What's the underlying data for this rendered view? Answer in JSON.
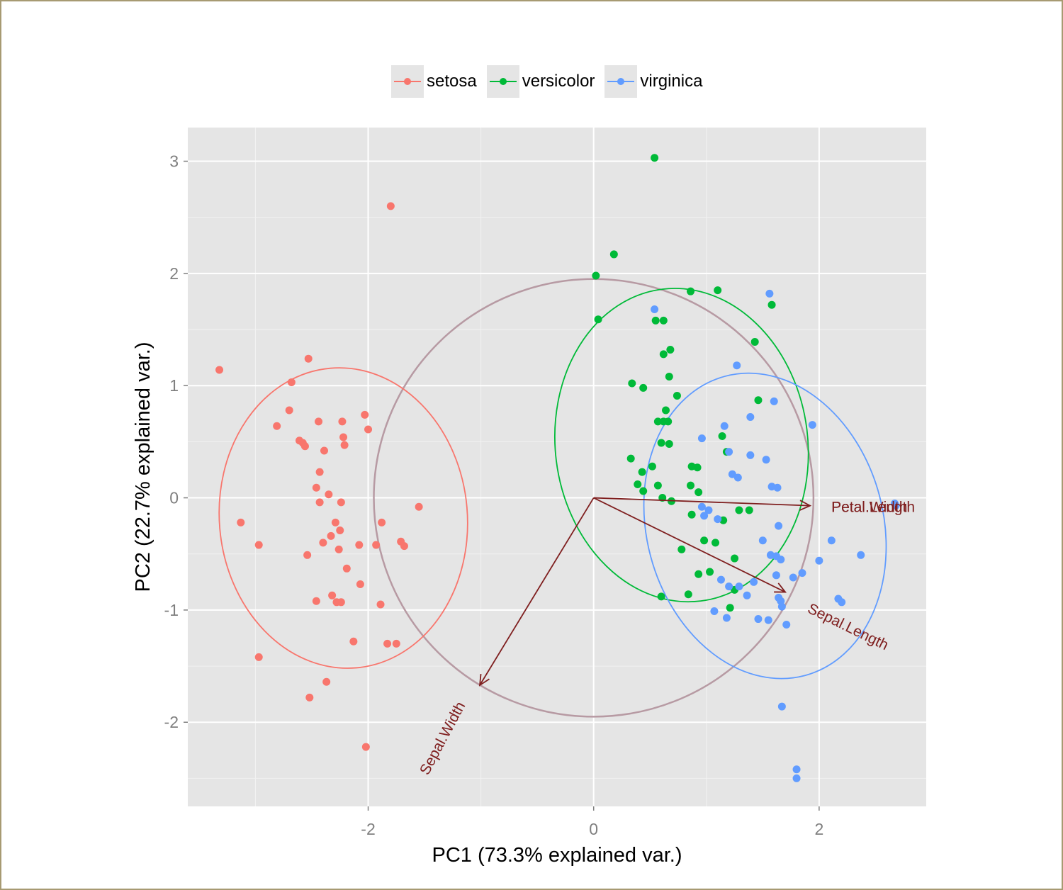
{
  "chart_data": {
    "type": "scatter",
    "title": "",
    "xlabel": "PC1 (73.3% explained var.)",
    "ylabel": "PC2 (22.7% explained var.)",
    "xlim": [
      -3.6,
      2.95
    ],
    "ylim": [
      -2.75,
      3.3
    ],
    "x_ticks": [
      -2,
      0,
      2
    ],
    "y_ticks": [
      -2,
      -1,
      0,
      1,
      2,
      3
    ],
    "x_tick_labels": [
      "-2",
      "0",
      "2"
    ],
    "y_tick_labels": [
      "-2",
      "-1",
      "0",
      "1",
      "2",
      "3"
    ],
    "grid": true,
    "legend": "top",
    "background": "#e5e5e5",
    "series": [
      {
        "name": "setosa",
        "color": "#f8766d",
        "ellipse": {
          "cx": -2.22,
          "cy": -0.18,
          "rx": 1.1,
          "ry": 1.34,
          "angle_deg": -5
        },
        "points": [
          [
            -3.32,
            1.14
          ],
          [
            -2.53,
            1.24
          ],
          [
            -2.68,
            1.03
          ],
          [
            -2.7,
            0.78
          ],
          [
            -2.81,
            0.64
          ],
          [
            -2.61,
            0.51
          ],
          [
            -2.58,
            0.49
          ],
          [
            -2.56,
            0.46
          ],
          [
            -2.44,
            0.68
          ],
          [
            -2.23,
            0.68
          ],
          [
            -2.03,
            0.74
          ],
          [
            -2.0,
            0.61
          ],
          [
            -2.22,
            0.54
          ],
          [
            -2.21,
            0.47
          ],
          [
            -2.39,
            0.42
          ],
          [
            -2.43,
            0.23
          ],
          [
            -2.46,
            0.09
          ],
          [
            -2.43,
            -0.04
          ],
          [
            -2.35,
            0.03
          ],
          [
            -2.24,
            -0.04
          ],
          [
            -3.13,
            -0.22
          ],
          [
            -2.97,
            -0.42
          ],
          [
            -2.54,
            -0.51
          ],
          [
            -2.4,
            -0.4
          ],
          [
            -2.33,
            -0.34
          ],
          [
            -2.29,
            -0.22
          ],
          [
            -2.25,
            -0.29
          ],
          [
            -2.26,
            -0.46
          ],
          [
            -2.19,
            -0.63
          ],
          [
            -2.08,
            -0.42
          ],
          [
            -1.93,
            -0.42
          ],
          [
            -1.88,
            -0.22
          ],
          [
            -1.55,
            -0.08
          ],
          [
            -1.71,
            -0.39
          ],
          [
            -1.68,
            -0.43
          ],
          [
            -2.07,
            -0.77
          ],
          [
            -1.89,
            -0.95
          ],
          [
            -2.32,
            -0.87
          ],
          [
            -2.46,
            -0.92
          ],
          [
            -2.28,
            -0.93
          ],
          [
            -2.24,
            -0.93
          ],
          [
            -2.13,
            -1.28
          ],
          [
            -1.83,
            -1.3
          ],
          [
            -1.75,
            -1.3
          ],
          [
            -2.97,
            -1.42
          ],
          [
            -2.37,
            -1.64
          ],
          [
            -2.52,
            -1.78
          ],
          [
            -2.02,
            -2.22
          ],
          [
            -1.8,
            2.6
          ]
        ]
      },
      {
        "name": "versicolor",
        "color": "#00ba38",
        "ellipse": {
          "cx": 0.78,
          "cy": 0.47,
          "rx": 1.12,
          "ry": 1.4,
          "angle_deg": -7
        },
        "points": [
          [
            0.54,
            3.03
          ],
          [
            0.18,
            2.17
          ],
          [
            0.02,
            1.98
          ],
          [
            0.04,
            1.59
          ],
          [
            0.86,
            1.84
          ],
          [
            1.1,
            1.85
          ],
          [
            1.58,
            1.72
          ],
          [
            0.55,
            1.58
          ],
          [
            0.62,
            1.58
          ],
          [
            1.43,
            1.39
          ],
          [
            0.68,
            1.32
          ],
          [
            0.62,
            1.28
          ],
          [
            0.67,
            1.08
          ],
          [
            0.34,
            1.02
          ],
          [
            0.44,
            0.98
          ],
          [
            0.74,
            0.91
          ],
          [
            0.64,
            0.78
          ],
          [
            1.46,
            0.87
          ],
          [
            0.62,
            0.68
          ],
          [
            0.57,
            0.68
          ],
          [
            0.66,
            0.68
          ],
          [
            1.14,
            0.55
          ],
          [
            0.6,
            0.49
          ],
          [
            0.67,
            0.48
          ],
          [
            1.18,
            0.41
          ],
          [
            0.33,
            0.35
          ],
          [
            0.87,
            0.28
          ],
          [
            0.92,
            0.27
          ],
          [
            0.52,
            0.28
          ],
          [
            0.43,
            0.23
          ],
          [
            0.39,
            0.12
          ],
          [
            0.57,
            0.11
          ],
          [
            0.44,
            0.06
          ],
          [
            0.86,
            0.11
          ],
          [
            0.93,
            0.05
          ],
          [
            0.69,
            -0.03
          ],
          [
            0.61,
            0.0
          ],
          [
            1.29,
            -0.11
          ],
          [
            1.38,
            -0.11
          ],
          [
            0.87,
            -0.15
          ],
          [
            1.15,
            -0.2
          ],
          [
            0.98,
            -0.38
          ],
          [
            1.08,
            -0.4
          ],
          [
            0.78,
            -0.46
          ],
          [
            1.25,
            -0.54
          ],
          [
            0.93,
            -0.68
          ],
          [
            1.03,
            -0.66
          ],
          [
            1.25,
            -0.82
          ],
          [
            0.84,
            -0.86
          ],
          [
            0.6,
            -0.88
          ],
          [
            1.21,
            -0.98
          ]
        ]
      },
      {
        "name": "virginica",
        "color": "#619cff",
        "ellipse": {
          "cx": 1.52,
          "cy": -0.25,
          "rx": 1.05,
          "ry": 1.38,
          "angle_deg": -15
        },
        "points": [
          [
            1.56,
            1.82
          ],
          [
            0.54,
            1.68
          ],
          [
            1.27,
            1.18
          ],
          [
            1.39,
            0.72
          ],
          [
            1.6,
            0.86
          ],
          [
            1.94,
            0.65
          ],
          [
            1.16,
            0.64
          ],
          [
            0.96,
            0.53
          ],
          [
            1.2,
            0.41
          ],
          [
            1.39,
            0.38
          ],
          [
            1.53,
            0.34
          ],
          [
            1.23,
            0.21
          ],
          [
            1.28,
            0.18
          ],
          [
            1.58,
            0.1
          ],
          [
            1.63,
            0.09
          ],
          [
            0.96,
            -0.08
          ],
          [
            1.02,
            -0.11
          ],
          [
            0.98,
            -0.16
          ],
          [
            1.1,
            -0.19
          ],
          [
            1.64,
            -0.25
          ],
          [
            1.5,
            -0.38
          ],
          [
            2.11,
            -0.38
          ],
          [
            1.57,
            -0.51
          ],
          [
            1.62,
            -0.52
          ],
          [
            1.66,
            -0.55
          ],
          [
            2.37,
            -0.51
          ],
          [
            2.0,
            -0.56
          ],
          [
            1.85,
            -0.67
          ],
          [
            1.62,
            -0.69
          ],
          [
            1.77,
            -0.71
          ],
          [
            1.13,
            -0.73
          ],
          [
            1.2,
            -0.79
          ],
          [
            1.29,
            -0.79
          ],
          [
            1.42,
            -0.75
          ],
          [
            1.64,
            -0.89
          ],
          [
            1.66,
            -0.92
          ],
          [
            1.67,
            -0.97
          ],
          [
            2.17,
            -0.9
          ],
          [
            2.2,
            -0.93
          ],
          [
            1.36,
            -0.87
          ],
          [
            1.07,
            -1.01
          ],
          [
            1.18,
            -1.07
          ],
          [
            1.46,
            -1.08
          ],
          [
            1.55,
            -1.09
          ],
          [
            1.71,
            -1.13
          ],
          [
            1.67,
            -1.86
          ],
          [
            1.8,
            -2.42
          ],
          [
            1.8,
            -2.5
          ],
          [
            2.67,
            -0.05
          ],
          [
            2.68,
            -0.07
          ]
        ]
      }
    ],
    "correlation_circle": {
      "r": 1.95,
      "color": "#b79aa3"
    },
    "loadings": [
      {
        "name": "Petal.Length",
        "x": 1.92,
        "y": -0.07,
        "label_angle_deg": 0
      },
      {
        "name": "Petal.Width",
        "x": 1.92,
        "y": -0.07,
        "label_angle_deg": 0
      },
      {
        "name": "Sepal.Length",
        "x": 1.7,
        "y": -0.84,
        "label_angle_deg": 26
      },
      {
        "name": "Sepal.Width",
        "x": -1.01,
        "y": -1.67,
        "label_angle_deg": -62
      }
    ],
    "loading_color": "#7f1f1f"
  }
}
